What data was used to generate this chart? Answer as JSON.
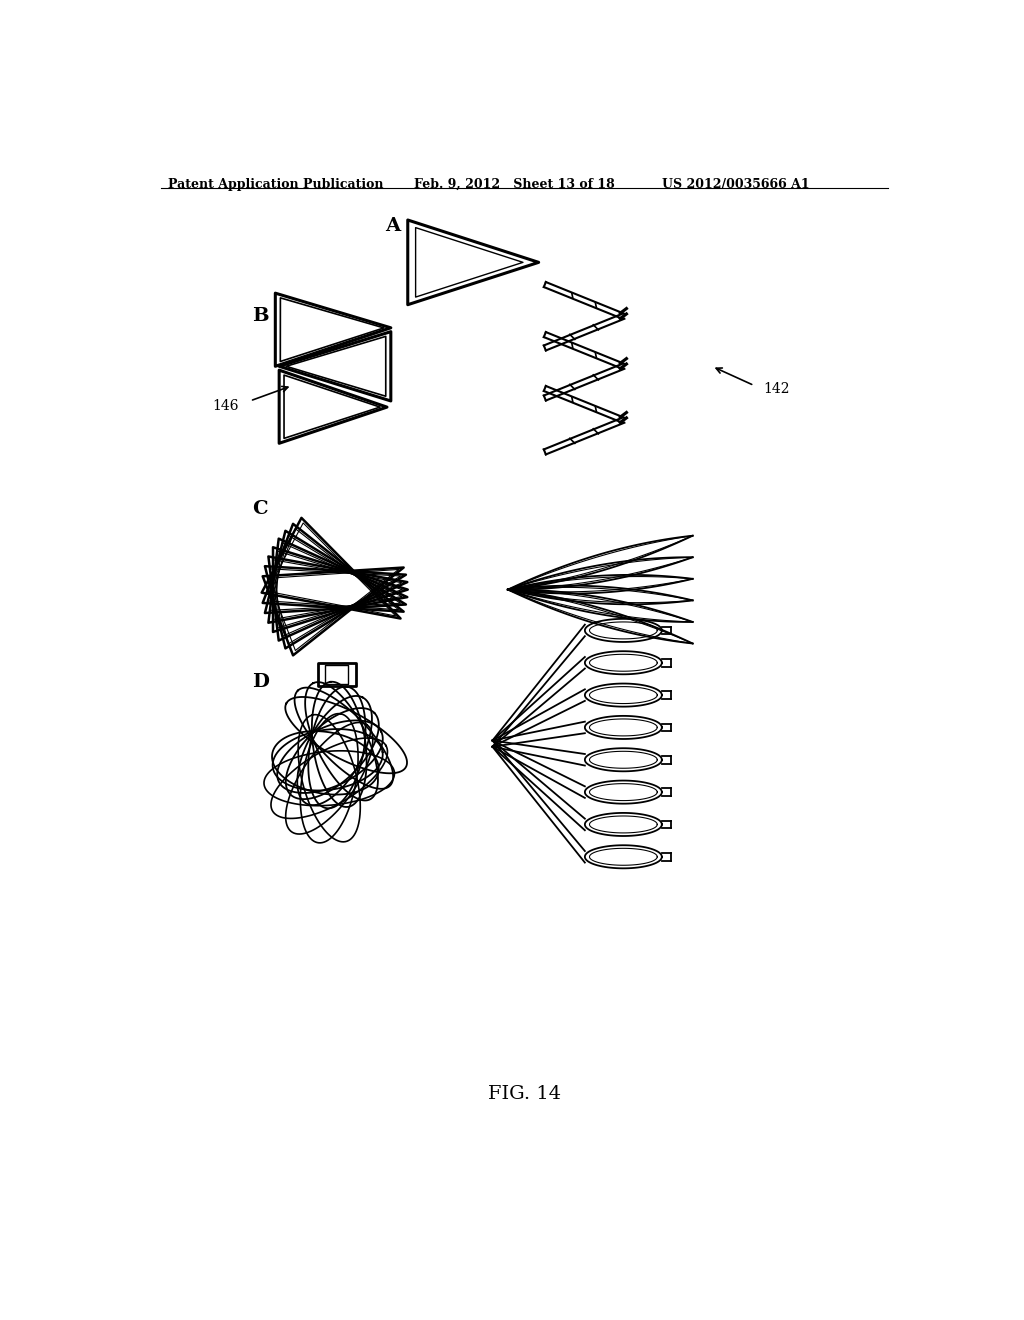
{
  "title": "FIG. 14",
  "header_left": "Patent Application Publication",
  "header_mid": "Feb. 9, 2012   Sheet 13 of 18",
  "header_right": "US 2012/0035666 A1",
  "label_A": "A",
  "label_B": "B",
  "label_C": "C",
  "label_D": "D",
  "ref_146": "146",
  "ref_142": "142",
  "bg_color": "#ffffff",
  "line_color": "#000000",
  "lw_thick": 2.2,
  "lw_med": 1.5,
  "lw_thin": 1.0,
  "font_size_header": 9,
  "font_size_label": 14,
  "font_size_ref": 10,
  "font_size_title": 14
}
